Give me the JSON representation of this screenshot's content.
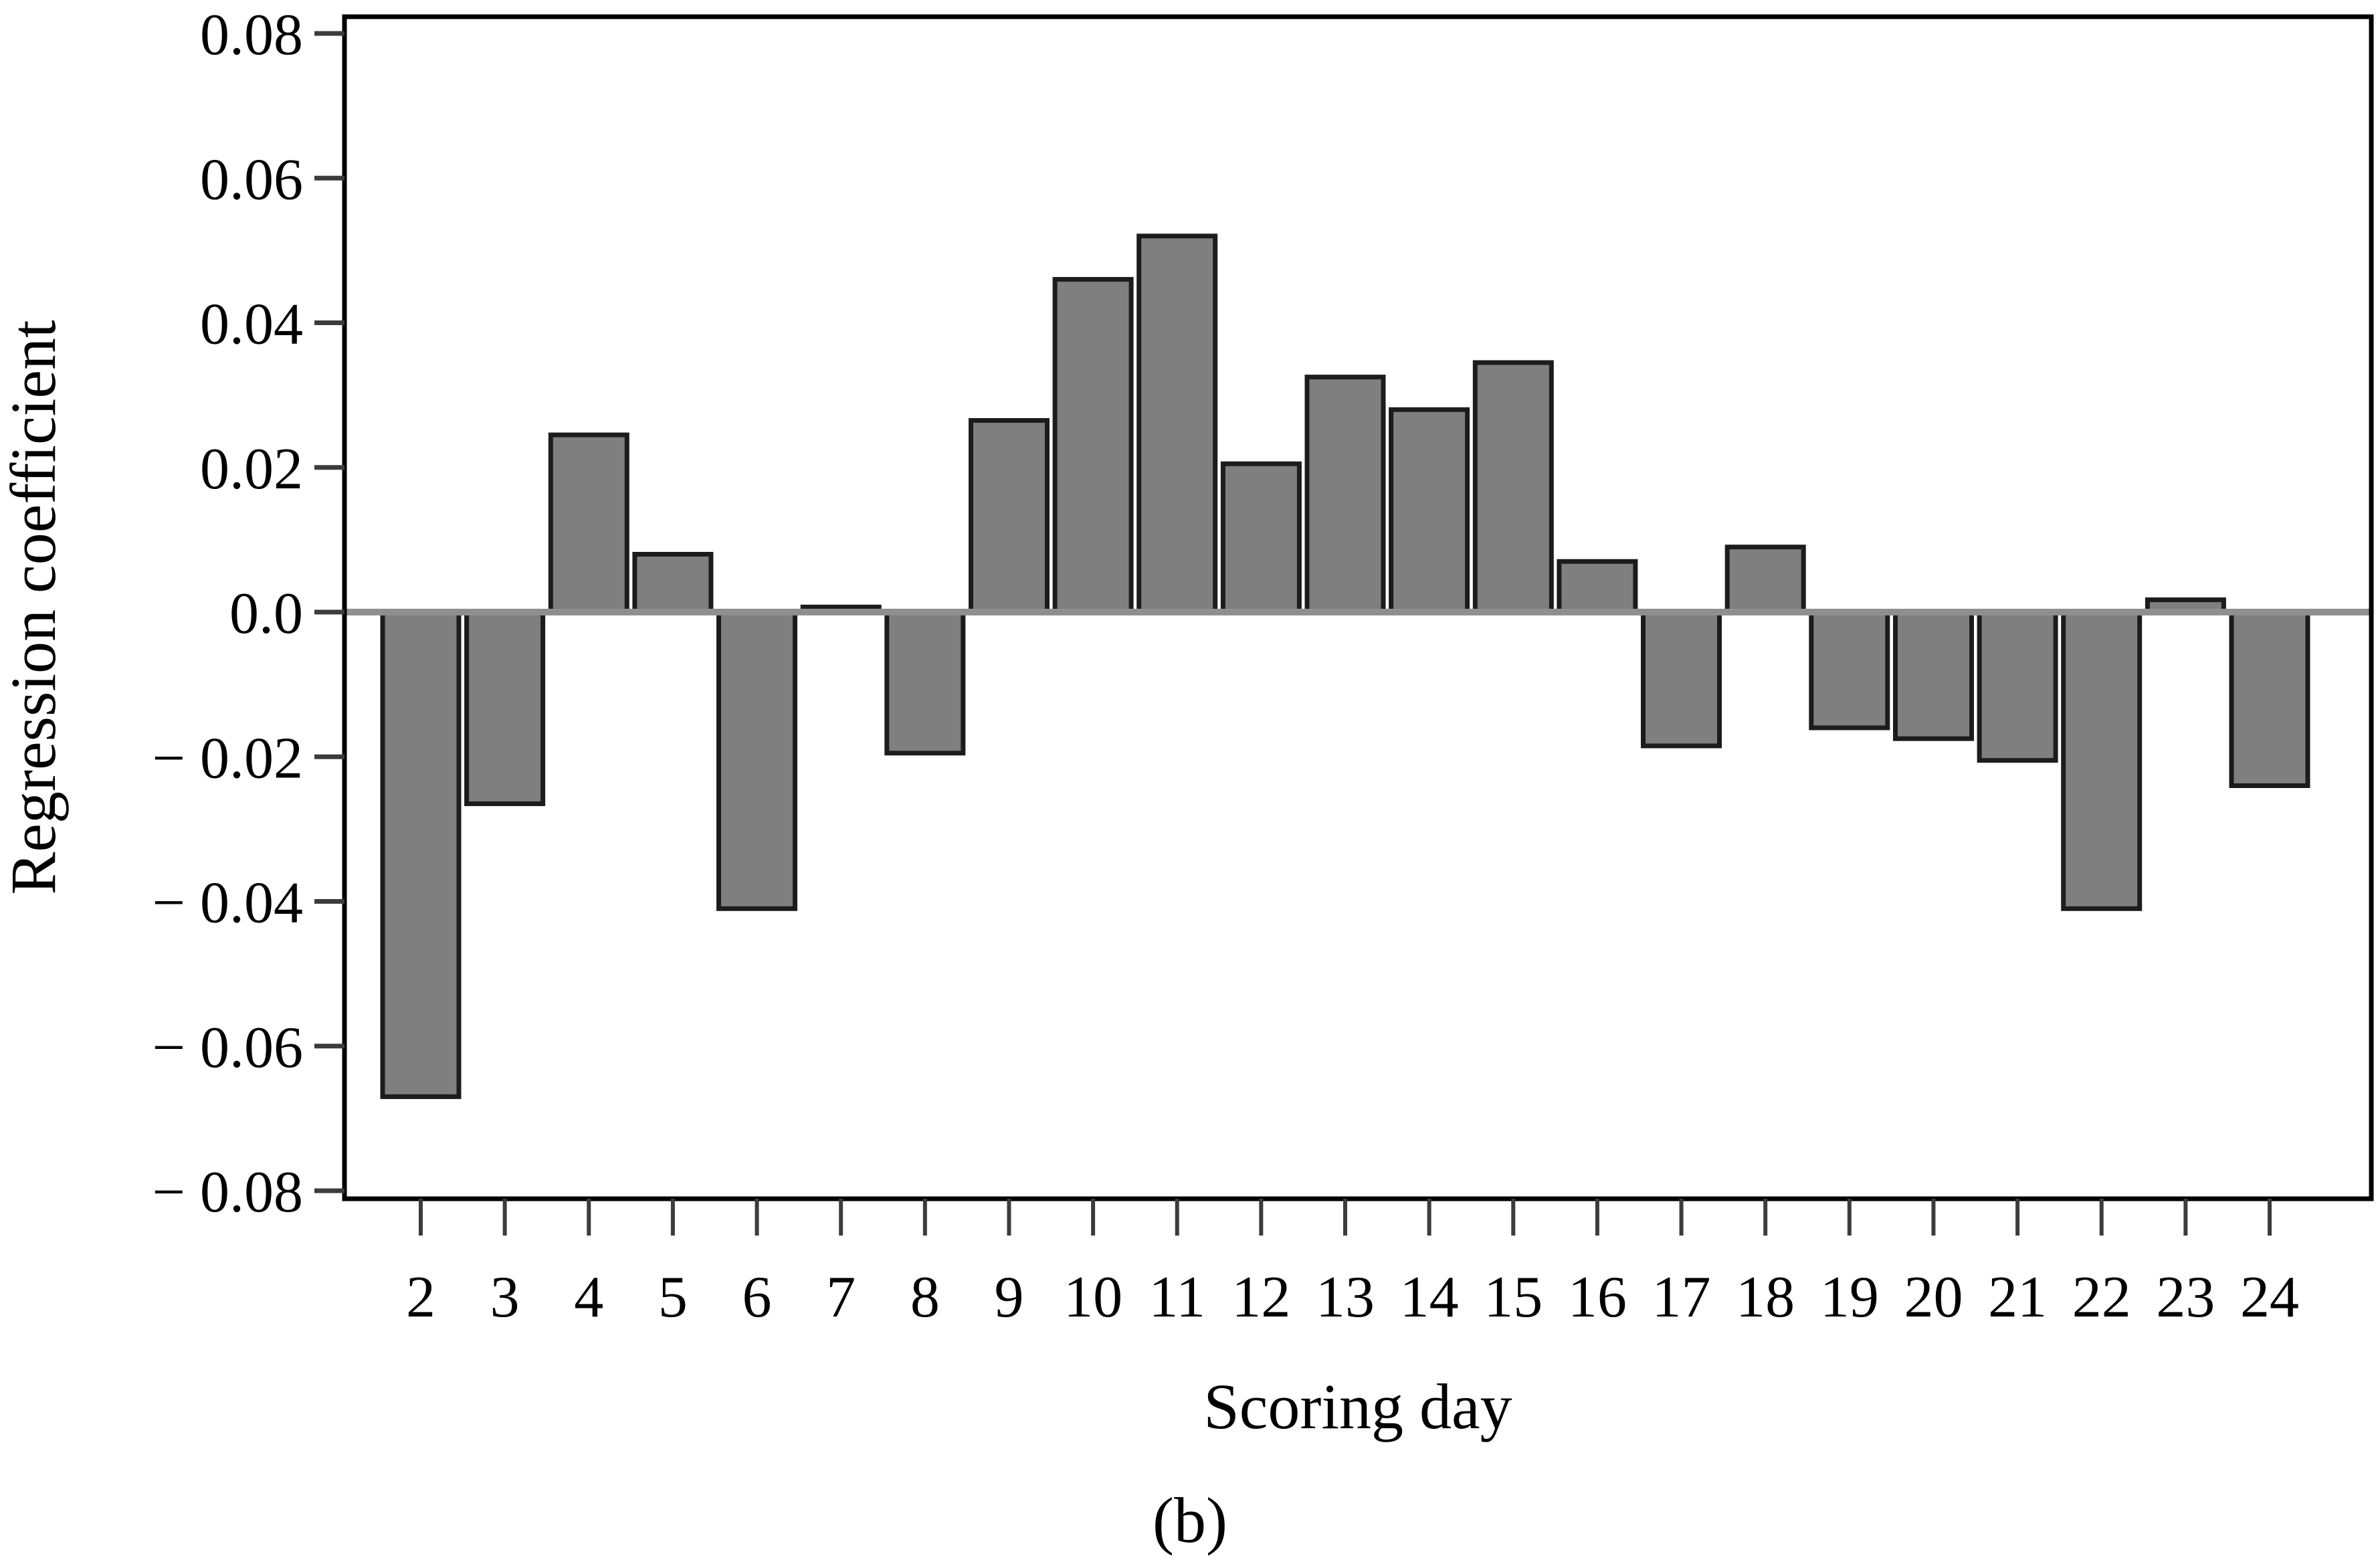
{
  "figure": {
    "ylabel": "Regression coefficient",
    "xlabel": "Scoring day",
    "caption": "(b)"
  },
  "chart_data": {
    "type": "bar",
    "title": "",
    "xlabel": "Scoring day",
    "ylabel": "Regression coefficient",
    "categories": [
      "2",
      "3",
      "4",
      "5",
      "6",
      "7",
      "8",
      "9",
      "10",
      "11",
      "12",
      "13",
      "14",
      "15",
      "16",
      "17",
      "18",
      "19",
      "20",
      "21",
      "22",
      "23",
      "24"
    ],
    "values": [
      -0.067,
      -0.0265,
      0.0245,
      0.008,
      -0.041,
      0.0007,
      -0.0195,
      0.0265,
      0.046,
      0.052,
      0.0205,
      0.0325,
      0.028,
      0.0345,
      0.007,
      -0.0185,
      0.009,
      -0.016,
      -0.0175,
      -0.0205,
      -0.041,
      0.0017,
      -0.024
    ],
    "ylim": [
      -0.08,
      0.08
    ],
    "ytick_step": 0.02,
    "ytick_labels": [
      "0.08",
      "0.06",
      "0.04",
      "0.02",
      "0.0",
      "− 0.02",
      "− 0.04",
      "− 0.06",
      "− 0.08"
    ],
    "ytick_values": [
      0.08,
      0.06,
      0.04,
      0.02,
      0.0,
      -0.02,
      -0.04,
      -0.06,
      -0.08
    ],
    "grid": false,
    "legend": null,
    "zero_line": true,
    "bar_color": "#7f7f7f",
    "bar_border_color": "#1c1c1c",
    "zero_line_color": "#8f8f8f",
    "axis_color": "#000000",
    "tick_color": "#3c3c3c",
    "background": "#ffffff"
  }
}
